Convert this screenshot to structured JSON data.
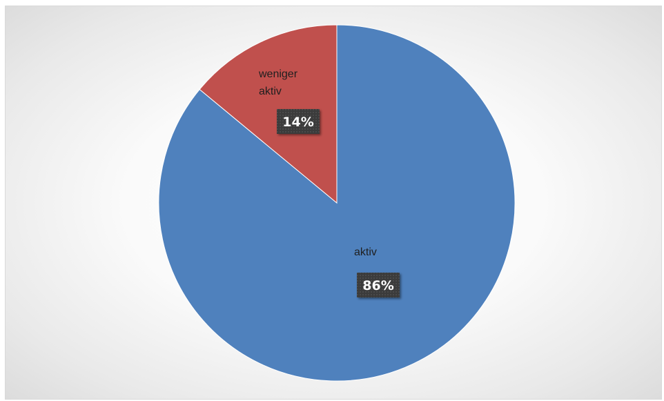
{
  "chart_data": {
    "type": "pie",
    "title": "",
    "categories": [
      "aktiv",
      "weniger aktiv"
    ],
    "values": [
      86,
      14
    ],
    "data_labels": [
      "86%",
      "14%"
    ],
    "colors": [
      "#4f81bd",
      "#c0504d"
    ],
    "legend": "none",
    "start_angle": "12 o'clock",
    "direction": "clockwise"
  }
}
